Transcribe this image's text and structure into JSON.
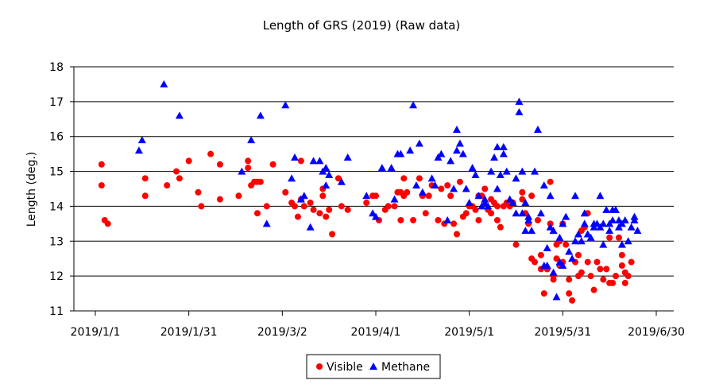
{
  "chart_data": {
    "type": "scatter",
    "title": "Length of GRS (2019) (Raw data)",
    "xlabel": "",
    "ylabel": "Length (deg.)",
    "ylim": [
      11,
      18
    ],
    "xlim": [
      "2019-01-01",
      "2019-06-30"
    ],
    "x_ticks": [
      "2019-01-01",
      "2019-01-31",
      "2019-03-02",
      "2019-04-01",
      "2019-05-01",
      "2019-05-31",
      "2019-06-30"
    ],
    "x_tick_labels": [
      "2019/1/1",
      "2019/1/31",
      "2019/3/2",
      "2019/4/1",
      "2019/5/1",
      "2019/5/31",
      "2019/6/30"
    ],
    "y_ticks": [
      11,
      12,
      13,
      14,
      15,
      16,
      17,
      18
    ],
    "grid": "horizontal",
    "legend_position": "bottom-center",
    "series": [
      {
        "name": "Visible",
        "marker": "circle",
        "color": "#ff0000",
        "points": [
          [
            "2019-01-03",
            15.2
          ],
          [
            "2019-01-03",
            14.6
          ],
          [
            "2019-01-04",
            13.6
          ],
          [
            "2019-01-05",
            13.5
          ],
          [
            "2019-01-17",
            14.3
          ],
          [
            "2019-01-17",
            14.8
          ],
          [
            "2019-01-24",
            14.6
          ],
          [
            "2019-01-27",
            15.0
          ],
          [
            "2019-01-28",
            14.8
          ],
          [
            "2019-01-31",
            15.3
          ],
          [
            "2019-02-03",
            14.4
          ],
          [
            "2019-02-04",
            14.0
          ],
          [
            "2019-02-07",
            15.5
          ],
          [
            "2019-02-10",
            15.2
          ],
          [
            "2019-02-10",
            14.2
          ],
          [
            "2019-02-16",
            14.3
          ],
          [
            "2019-02-19",
            15.3
          ],
          [
            "2019-02-19",
            15.1
          ],
          [
            "2019-02-20",
            14.6
          ],
          [
            "2019-02-21",
            14.7
          ],
          [
            "2019-02-22",
            13.8
          ],
          [
            "2019-02-22",
            14.7
          ],
          [
            "2019-02-23",
            14.7
          ],
          [
            "2019-02-25",
            14.0
          ],
          [
            "2019-02-27",
            15.2
          ],
          [
            "2019-03-03",
            14.4
          ],
          [
            "2019-03-05",
            14.1
          ],
          [
            "2019-03-06",
            14.0
          ],
          [
            "2019-03-07",
            13.7
          ],
          [
            "2019-03-08",
            15.3
          ],
          [
            "2019-03-08",
            14.2
          ],
          [
            "2019-03-09",
            14.0
          ],
          [
            "2019-03-11",
            14.1
          ],
          [
            "2019-03-12",
            13.9
          ],
          [
            "2019-03-14",
            13.8
          ],
          [
            "2019-03-15",
            14.5
          ],
          [
            "2019-03-15",
            14.3
          ],
          [
            "2019-03-16",
            13.7
          ],
          [
            "2019-03-17",
            13.9
          ],
          [
            "2019-03-18",
            13.2
          ],
          [
            "2019-03-20",
            14.8
          ],
          [
            "2019-03-21",
            14.0
          ],
          [
            "2019-03-23",
            13.9
          ],
          [
            "2019-03-29",
            14.1
          ],
          [
            "2019-03-31",
            14.3
          ],
          [
            "2019-04-01",
            14.3
          ],
          [
            "2019-04-02",
            13.6
          ],
          [
            "2019-04-04",
            13.9
          ],
          [
            "2019-04-05",
            14.0
          ],
          [
            "2019-04-07",
            14.0
          ],
          [
            "2019-04-08",
            14.4
          ],
          [
            "2019-04-09",
            14.4
          ],
          [
            "2019-04-09",
            13.6
          ],
          [
            "2019-04-10",
            14.8
          ],
          [
            "2019-04-10",
            14.3
          ],
          [
            "2019-04-11",
            14.4
          ],
          [
            "2019-04-13",
            13.6
          ],
          [
            "2019-04-15",
            14.8
          ],
          [
            "2019-04-16",
            14.3
          ],
          [
            "2019-04-17",
            13.8
          ],
          [
            "2019-04-18",
            14.3
          ],
          [
            "2019-04-19",
            14.6
          ],
          [
            "2019-04-21",
            13.6
          ],
          [
            "2019-04-22",
            14.5
          ],
          [
            "2019-04-23",
            13.5
          ],
          [
            "2019-04-24",
            14.6
          ],
          [
            "2019-04-25",
            14.3
          ],
          [
            "2019-04-26",
            13.5
          ],
          [
            "2019-04-27",
            13.2
          ],
          [
            "2019-04-28",
            14.7
          ],
          [
            "2019-04-29",
            13.7
          ],
          [
            "2019-04-30",
            13.8
          ],
          [
            "2019-05-01",
            14.0
          ],
          [
            "2019-05-02",
            14.0
          ],
          [
            "2019-05-03",
            13.9
          ],
          [
            "2019-05-04",
            14.3
          ],
          [
            "2019-05-04",
            13.6
          ],
          [
            "2019-05-05",
            14.3
          ],
          [
            "2019-05-06",
            14.5
          ],
          [
            "2019-05-07",
            13.9
          ],
          [
            "2019-05-08",
            14.2
          ],
          [
            "2019-05-08",
            13.8
          ],
          [
            "2019-05-09",
            14.1
          ],
          [
            "2019-05-10",
            13.6
          ],
          [
            "2019-05-10",
            14.0
          ],
          [
            "2019-05-11",
            13.4
          ],
          [
            "2019-05-12",
            14.0
          ],
          [
            "2019-05-13",
            14.1
          ],
          [
            "2019-05-14",
            14.0
          ],
          [
            "2019-05-15",
            14.1
          ],
          [
            "2019-05-16",
            12.9
          ],
          [
            "2019-05-18",
            14.4
          ],
          [
            "2019-05-18",
            14.2
          ],
          [
            "2019-05-19",
            13.8
          ],
          [
            "2019-05-20",
            13.5
          ],
          [
            "2019-05-21",
            14.3
          ],
          [
            "2019-05-21",
            12.5
          ],
          [
            "2019-05-22",
            12.4
          ],
          [
            "2019-05-23",
            13.6
          ],
          [
            "2019-05-24",
            12.6
          ],
          [
            "2019-05-24",
            12.2
          ],
          [
            "2019-05-25",
            11.5
          ],
          [
            "2019-05-26",
            12.2
          ],
          [
            "2019-05-26",
            12.2
          ],
          [
            "2019-05-27",
            14.7
          ],
          [
            "2019-05-28",
            12.0
          ],
          [
            "2019-05-28",
            11.9
          ],
          [
            "2019-05-29",
            12.9
          ],
          [
            "2019-05-30",
            13.0
          ],
          [
            "2019-05-30",
            12.3
          ],
          [
            "2019-05-31",
            13.5
          ],
          [
            "2019-05-31",
            12.4
          ],
          [
            "2019-06-01",
            12.9
          ],
          [
            "2019-06-02",
            11.9
          ],
          [
            "2019-06-02",
            11.5
          ],
          [
            "2019-06-03",
            11.3
          ],
          [
            "2019-06-04",
            12.4
          ],
          [
            "2019-06-05",
            12.6
          ],
          [
            "2019-06-05",
            12.0
          ],
          [
            "2019-06-06",
            12.1
          ],
          [
            "2019-06-07",
            13.4
          ],
          [
            "2019-06-08",
            12.4
          ],
          [
            "2019-06-08",
            13.8
          ],
          [
            "2019-06-09",
            12.0
          ],
          [
            "2019-06-10",
            11.6
          ],
          [
            "2019-06-11",
            12.4
          ],
          [
            "2019-06-12",
            12.2
          ],
          [
            "2019-06-13",
            11.9
          ],
          [
            "2019-06-14",
            12.2
          ],
          [
            "2019-06-15",
            13.1
          ],
          [
            "2019-06-16",
            11.8
          ],
          [
            "2019-06-17",
            12.0
          ],
          [
            "2019-06-18",
            13.1
          ],
          [
            "2019-06-19",
            12.3
          ],
          [
            "2019-06-19",
            12.6
          ],
          [
            "2019-06-20",
            12.1
          ],
          [
            "2019-06-20",
            11.8
          ],
          [
            "2019-06-21",
            12.0
          ],
          [
            "2019-06-22",
            12.4
          ],
          [
            "2019-06-15",
            11.8
          ],
          [
            "2019-05-29",
            12.5
          ],
          [
            "2019-05-27",
            13.5
          ],
          [
            "2019-06-06",
            13.3
          ]
        ]
      },
      {
        "name": "Methane",
        "marker": "triangle",
        "color": "#0000ff",
        "points": [
          [
            "2019-01-15",
            15.6
          ],
          [
            "2019-01-16",
            15.9
          ],
          [
            "2019-01-23",
            17.5
          ],
          [
            "2019-01-28",
            16.6
          ],
          [
            "2019-02-17",
            15.0
          ],
          [
            "2019-02-20",
            15.9
          ],
          [
            "2019-02-23",
            16.6
          ],
          [
            "2019-02-25",
            13.5
          ],
          [
            "2019-03-03",
            16.9
          ],
          [
            "2019-03-05",
            14.8
          ],
          [
            "2019-03-06",
            15.4
          ],
          [
            "2019-03-08",
            14.2
          ],
          [
            "2019-03-09",
            14.3
          ],
          [
            "2019-03-11",
            13.4
          ],
          [
            "2019-03-12",
            15.3
          ],
          [
            "2019-03-14",
            15.3
          ],
          [
            "2019-03-15",
            15.0
          ],
          [
            "2019-03-16",
            15.1
          ],
          [
            "2019-03-16",
            14.6
          ],
          [
            "2019-03-17",
            14.9
          ],
          [
            "2019-03-21",
            14.7
          ],
          [
            "2019-03-23",
            15.4
          ],
          [
            "2019-03-29",
            14.3
          ],
          [
            "2019-03-31",
            13.8
          ],
          [
            "2019-04-01",
            13.7
          ],
          [
            "2019-04-03",
            15.1
          ],
          [
            "2019-04-06",
            15.1
          ],
          [
            "2019-04-07",
            14.2
          ],
          [
            "2019-04-08",
            15.5
          ],
          [
            "2019-04-09",
            15.5
          ],
          [
            "2019-04-12",
            15.6
          ],
          [
            "2019-04-13",
            16.9
          ],
          [
            "2019-04-14",
            14.6
          ],
          [
            "2019-04-15",
            15.8
          ],
          [
            "2019-04-16",
            14.4
          ],
          [
            "2019-04-19",
            14.8
          ],
          [
            "2019-04-20",
            14.6
          ],
          [
            "2019-04-21",
            15.4
          ],
          [
            "2019-04-22",
            15.5
          ],
          [
            "2019-04-24",
            13.6
          ],
          [
            "2019-04-25",
            15.3
          ],
          [
            "2019-04-26",
            14.5
          ],
          [
            "2019-04-27",
            16.2
          ],
          [
            "2019-04-27",
            15.6
          ],
          [
            "2019-04-28",
            15.8
          ],
          [
            "2019-04-29",
            15.5
          ],
          [
            "2019-04-30",
            14.5
          ],
          [
            "2019-05-01",
            14.1
          ],
          [
            "2019-05-02",
            15.1
          ],
          [
            "2019-05-03",
            14.9
          ],
          [
            "2019-05-04",
            14.3
          ],
          [
            "2019-05-05",
            14.0
          ],
          [
            "2019-05-06",
            14.1
          ],
          [
            "2019-05-06",
            14.2
          ],
          [
            "2019-05-07",
            14.0
          ],
          [
            "2019-05-08",
            15.0
          ],
          [
            "2019-05-09",
            15.4
          ],
          [
            "2019-05-10",
            14.5
          ],
          [
            "2019-05-10",
            15.7
          ],
          [
            "2019-05-11",
            14.9
          ],
          [
            "2019-05-12",
            15.7
          ],
          [
            "2019-05-12",
            15.5
          ],
          [
            "2019-05-13",
            15.0
          ],
          [
            "2019-05-14",
            14.2
          ],
          [
            "2019-05-15",
            14.1
          ],
          [
            "2019-05-16",
            13.8
          ],
          [
            "2019-05-17",
            17.0
          ],
          [
            "2019-05-17",
            16.7
          ],
          [
            "2019-05-18",
            15.0
          ],
          [
            "2019-05-18",
            13.8
          ],
          [
            "2019-05-19",
            13.3
          ],
          [
            "2019-05-19",
            14.1
          ],
          [
            "2019-05-20",
            13.7
          ],
          [
            "2019-05-20",
            13.6
          ],
          [
            "2019-05-21",
            13.3
          ],
          [
            "2019-05-22",
            15.0
          ],
          [
            "2019-05-23",
            16.2
          ],
          [
            "2019-05-24",
            13.8
          ],
          [
            "2019-05-25",
            14.6
          ],
          [
            "2019-05-26",
            12.8
          ],
          [
            "2019-05-26",
            12.3
          ],
          [
            "2019-05-27",
            14.3
          ],
          [
            "2019-05-27",
            13.4
          ],
          [
            "2019-05-28",
            12.1
          ],
          [
            "2019-05-28",
            13.3
          ],
          [
            "2019-05-29",
            11.4
          ],
          [
            "2019-05-30",
            12.4
          ],
          [
            "2019-05-30",
            13.1
          ],
          [
            "2019-05-31",
            12.3
          ],
          [
            "2019-06-01",
            13.7
          ],
          [
            "2019-06-02",
            12.7
          ],
          [
            "2019-06-03",
            12.5
          ],
          [
            "2019-06-04",
            14.3
          ],
          [
            "2019-06-04",
            13.0
          ],
          [
            "2019-06-05",
            13.2
          ],
          [
            "2019-06-06",
            13.0
          ],
          [
            "2019-06-07",
            13.8
          ],
          [
            "2019-06-07",
            13.5
          ],
          [
            "2019-06-08",
            13.2
          ],
          [
            "2019-06-09",
            13.1
          ],
          [
            "2019-06-10",
            13.4
          ],
          [
            "2019-06-11",
            13.5
          ],
          [
            "2019-06-12",
            14.3
          ],
          [
            "2019-06-12",
            13.4
          ],
          [
            "2019-06-13",
            13.5
          ],
          [
            "2019-06-14",
            13.9
          ],
          [
            "2019-06-15",
            13.3
          ],
          [
            "2019-06-15",
            13.5
          ],
          [
            "2019-06-16",
            13.9
          ],
          [
            "2019-06-16",
            13.6
          ],
          [
            "2019-06-17",
            13.9
          ],
          [
            "2019-06-18",
            13.4
          ],
          [
            "2019-06-18",
            13.6
          ],
          [
            "2019-06-19",
            13.5
          ],
          [
            "2019-06-19",
            12.9
          ],
          [
            "2019-06-20",
            13.6
          ],
          [
            "2019-06-21",
            13.0
          ],
          [
            "2019-06-22",
            13.4
          ],
          [
            "2019-06-23",
            13.7
          ],
          [
            "2019-06-23",
            13.6
          ],
          [
            "2019-06-24",
            13.3
          ],
          [
            "2019-06-13",
            12.9
          ],
          [
            "2019-06-10",
            13.5
          ],
          [
            "2019-05-31",
            13.5
          ],
          [
            "2019-05-25",
            12.3
          ],
          [
            "2019-05-28",
            13.3
          ],
          [
            "2019-05-16",
            14.8
          ]
        ]
      }
    ]
  }
}
